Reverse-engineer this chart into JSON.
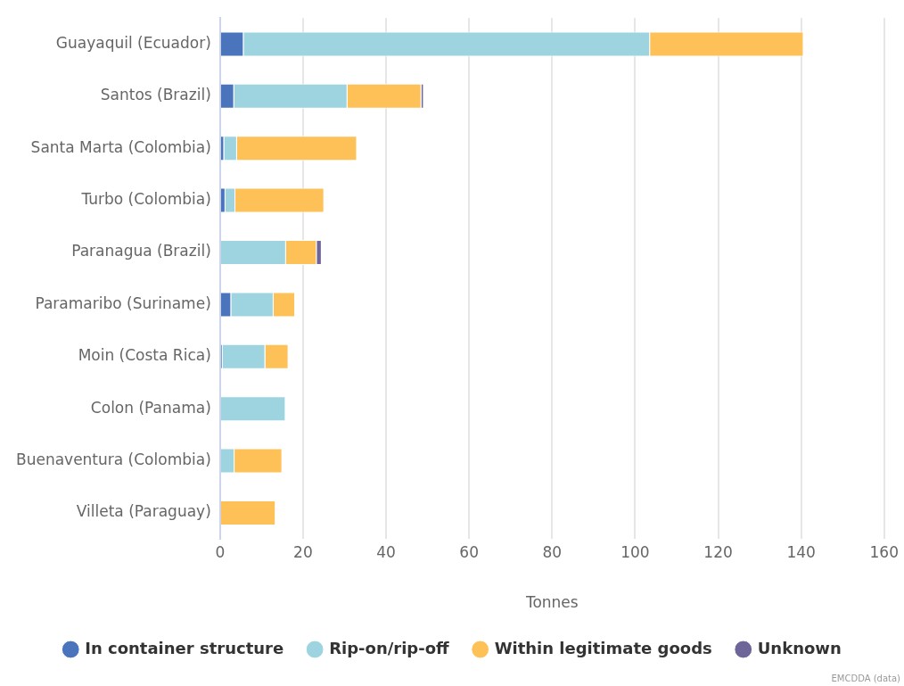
{
  "chart_data": {
    "type": "bar",
    "orientation": "horizontal",
    "stacked": true,
    "xlabel": "Tonnes",
    "categories": [
      "Guayaquil (Ecuador)",
      "Santos (Brazil)",
      "Santa Marta (Colombia)",
      "Turbo (Colombia)",
      "Paranagua (Brazil)",
      "Paramaribo (Suriname)",
      "Moin (Costa Rica)",
      "Colon (Panama)",
      "Buenaventura (Colombia)",
      "Villeta (Paraguay)"
    ],
    "series": [
      {
        "name": "In container structure",
        "color": "#4a74bc",
        "values": [
          5.7,
          3.4,
          1.0,
          1.3,
          null,
          2.7,
          0.6,
          null,
          null,
          null
        ]
      },
      {
        "name": "Rip-on/rip-off",
        "color": "#9dd4df",
        "values": [
          97.9,
          27.3,
          3.1,
          2.4,
          15.9,
          10.2,
          10.3,
          15.8,
          3.5,
          null
        ]
      },
      {
        "name": "Within legitimate goods",
        "color": "#fdc158",
        "values": [
          37.0,
          17.8,
          28.9,
          21.4,
          7.4,
          5.2,
          5.6,
          null,
          11.5,
          13.4
        ]
      },
      {
        "name": "Unknown",
        "color": "#6e6598",
        "values": [
          null,
          0.6,
          null,
          null,
          1.2,
          null,
          null,
          null,
          null,
          null
        ]
      }
    ],
    "xlim": [
      0,
      160
    ],
    "xticks": [
      0,
      20,
      40,
      60,
      80,
      100,
      120,
      140,
      160
    ],
    "grid": "x",
    "legend": "bottom",
    "annotations": [
      "EMCDDA (data)"
    ]
  }
}
